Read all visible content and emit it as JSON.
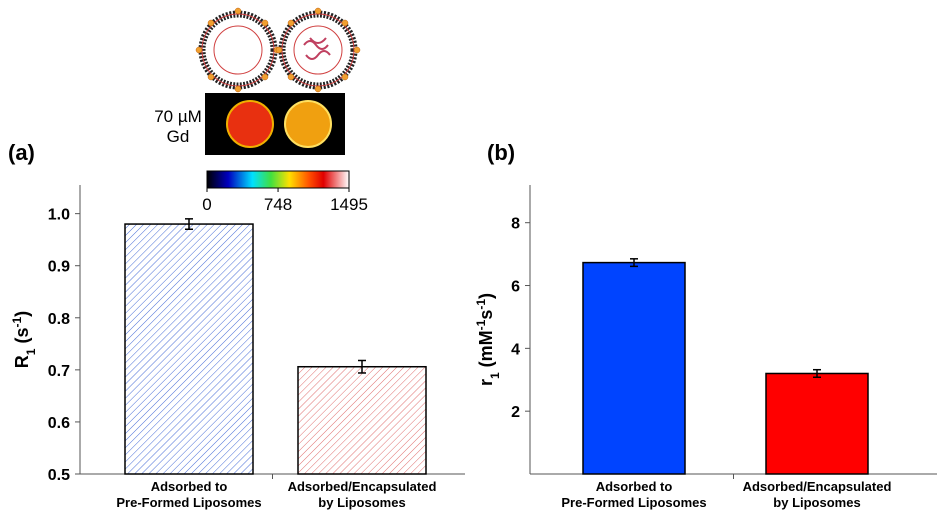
{
  "chart_data": [
    {
      "type": "bar",
      "panel_label": "(a)",
      "y_label": [
        {
          "text": "R"
        },
        {
          "text": "1",
          "style": "sub"
        },
        {
          "text": " (s"
        },
        {
          "text": "-1",
          "style": "sup"
        },
        {
          "text": ")"
        }
      ],
      "categories": [
        [
          "Adsorbed to",
          "Pre-Formed Liposomes"
        ],
        [
          "Adsorbed/Encapsulated",
          "by Liposomes"
        ]
      ],
      "values": [
        0.98,
        0.706
      ],
      "errors": [
        0.01,
        0.012
      ],
      "colors": [
        "#4a6fd8",
        "#e07070"
      ],
      "hatch": true,
      "ylim": [
        0.5,
        1.055
      ],
      "yticks": [
        {
          "value": 0.5,
          "label": "0.5"
        },
        {
          "value": 0.6,
          "label": "0.6"
        },
        {
          "value": 0.7,
          "label": "0.7"
        },
        {
          "value": 0.8,
          "label": "0.8"
        },
        {
          "value": 0.9,
          "label": "0.9"
        },
        {
          "value": 1.0,
          "label": "1.0"
        }
      ],
      "inset": {
        "label": [
          "70 µM",
          "Gd"
        ],
        "colorbar_ticks": [
          0,
          748,
          1495
        ],
        "colorbar_lim": [
          0,
          1495
        ]
      }
    },
    {
      "type": "bar",
      "panel_label": "(b)",
      "y_label": [
        {
          "text": "r"
        },
        {
          "text": "1",
          "style": "sub"
        },
        {
          "text": " (mM"
        },
        {
          "text": "-1",
          "style": "sup"
        },
        {
          "text": "s"
        },
        {
          "text": "-1",
          "style": "sup"
        },
        {
          "text": ")"
        }
      ],
      "categories": [
        [
          "Adsorbed to",
          "Pre-Formed Liposomes"
        ],
        [
          "Adsorbed/Encapsulated",
          "by Liposomes"
        ]
      ],
      "values": [
        6.73,
        3.2
      ],
      "errors": [
        0.12,
        0.12
      ],
      "colors": [
        "#0044ff",
        "#ff0000"
      ],
      "hatch": false,
      "ylim": [
        0,
        9.2
      ],
      "yticks": [
        2,
        4,
        6,
        8
      ]
    }
  ]
}
